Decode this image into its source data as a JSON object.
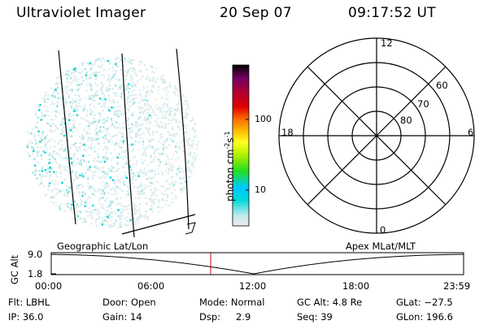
{
  "header": {
    "instrument": "Ultraviolet Imager",
    "date": "20 Sep 07",
    "time": "09:17:52 UT"
  },
  "colorbar": {
    "unit_label": "photon cm",
    "unit_exp1": "-2",
    "unit_mid": "s",
    "unit_exp2": "-1",
    "ticks": [
      "100",
      "10"
    ],
    "colors": [
      "#e6e6e6",
      "#00d8d8",
      "#00e000",
      "#ffff00",
      "#ffa000",
      "#e00000",
      "#a00060",
      "#000000"
    ]
  },
  "polar_plot": {
    "mlt_labels": {
      "top": "12",
      "left": "18",
      "right": "6",
      "bottom": "0"
    },
    "lat_labels": [
      "60",
      "70",
      "80"
    ]
  },
  "orbit_panel": {
    "ylabel": "GC Alt",
    "yticks": [
      "9.0",
      "1.8"
    ],
    "left_title": "Geographic Lat/Lon",
    "right_title": "Apex MLat/MLT",
    "xticks": [
      "00:00",
      "06:00",
      "12:00",
      "18:00",
      "23:59"
    ],
    "marker_color": "#cc0000"
  },
  "info": {
    "row1": {
      "flt": "Flt: LBHL",
      "door": "Door: Open",
      "mode": "Mode: Normal",
      "gcalt": "GC Alt: 4.8 Re",
      "glat": "GLat: −27.5"
    },
    "row2": {
      "ip": "IP: 36.0",
      "gain": "Gain: 14",
      "dsp_label": "Dsp:",
      "dsp_value": "2.9",
      "seq": "Seq: 39",
      "glon": "GLon: 196.6"
    }
  }
}
